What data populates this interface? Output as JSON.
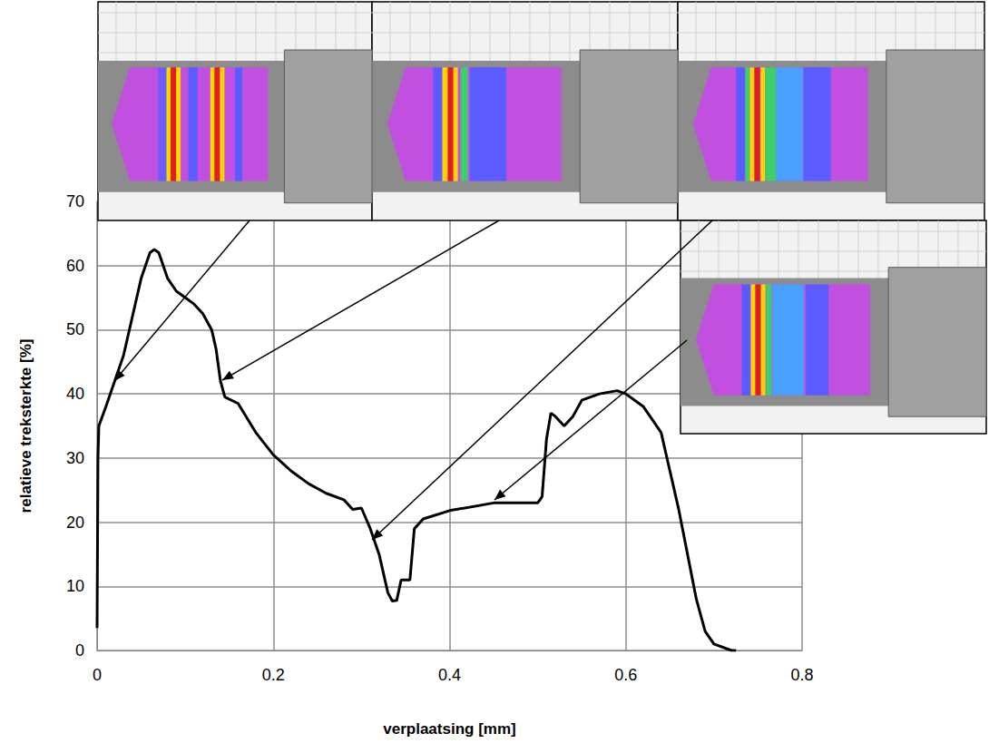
{
  "chart_data": {
    "type": "line",
    "x_label": "verplaatsing [mm]",
    "y_label": "relatieve treksterkte [%]",
    "x": [
      0,
      0.001,
      0.002,
      0.01,
      0.02,
      0.03,
      0.04,
      0.05,
      0.06,
      0.065,
      0.07,
      0.08,
      0.09,
      0.1,
      0.11,
      0.12,
      0.13,
      0.135,
      0.14,
      0.145,
      0.16,
      0.18,
      0.2,
      0.22,
      0.24,
      0.26,
      0.28,
      0.29,
      0.3,
      0.31,
      0.32,
      0.33,
      0.335,
      0.34,
      0.345,
      0.355,
      0.36,
      0.37,
      0.4,
      0.45,
      0.5,
      0.505,
      0.51,
      0.515,
      0.52,
      0.53,
      0.54,
      0.55,
      0.57,
      0.59,
      0.6,
      0.62,
      0.64,
      0.66,
      0.68,
      0.69,
      0.7,
      0.72,
      0.725
    ],
    "series": [
      {
        "color": "#000000",
        "values": [
          3.5,
          30,
          35,
          38,
          42,
          46,
          52,
          58,
          62,
          62.5,
          62,
          58,
          56,
          55,
          54,
          52.5,
          50,
          47,
          42,
          39.5,
          38.5,
          34,
          30.5,
          28,
          26,
          24.5,
          23.5,
          22,
          22.2,
          19,
          15,
          9,
          7.7,
          7.8,
          11,
          11,
          19,
          20.5,
          21.8,
          23,
          23,
          24,
          33,
          37,
          36.5,
          35,
          36.5,
          39,
          40,
          40.5,
          40,
          38,
          34,
          22,
          8,
          3,
          1,
          0,
          0
        ]
      }
    ],
    "xlim": [
      0,
      0.8
    ],
    "xticks": [
      0,
      0.2,
      0.4,
      0.6,
      0.8
    ],
    "ylim": [
      0,
      70
    ],
    "yticks": [
      0,
      10,
      20,
      30,
      40,
      50,
      60,
      70
    ],
    "grid": true
  }
}
